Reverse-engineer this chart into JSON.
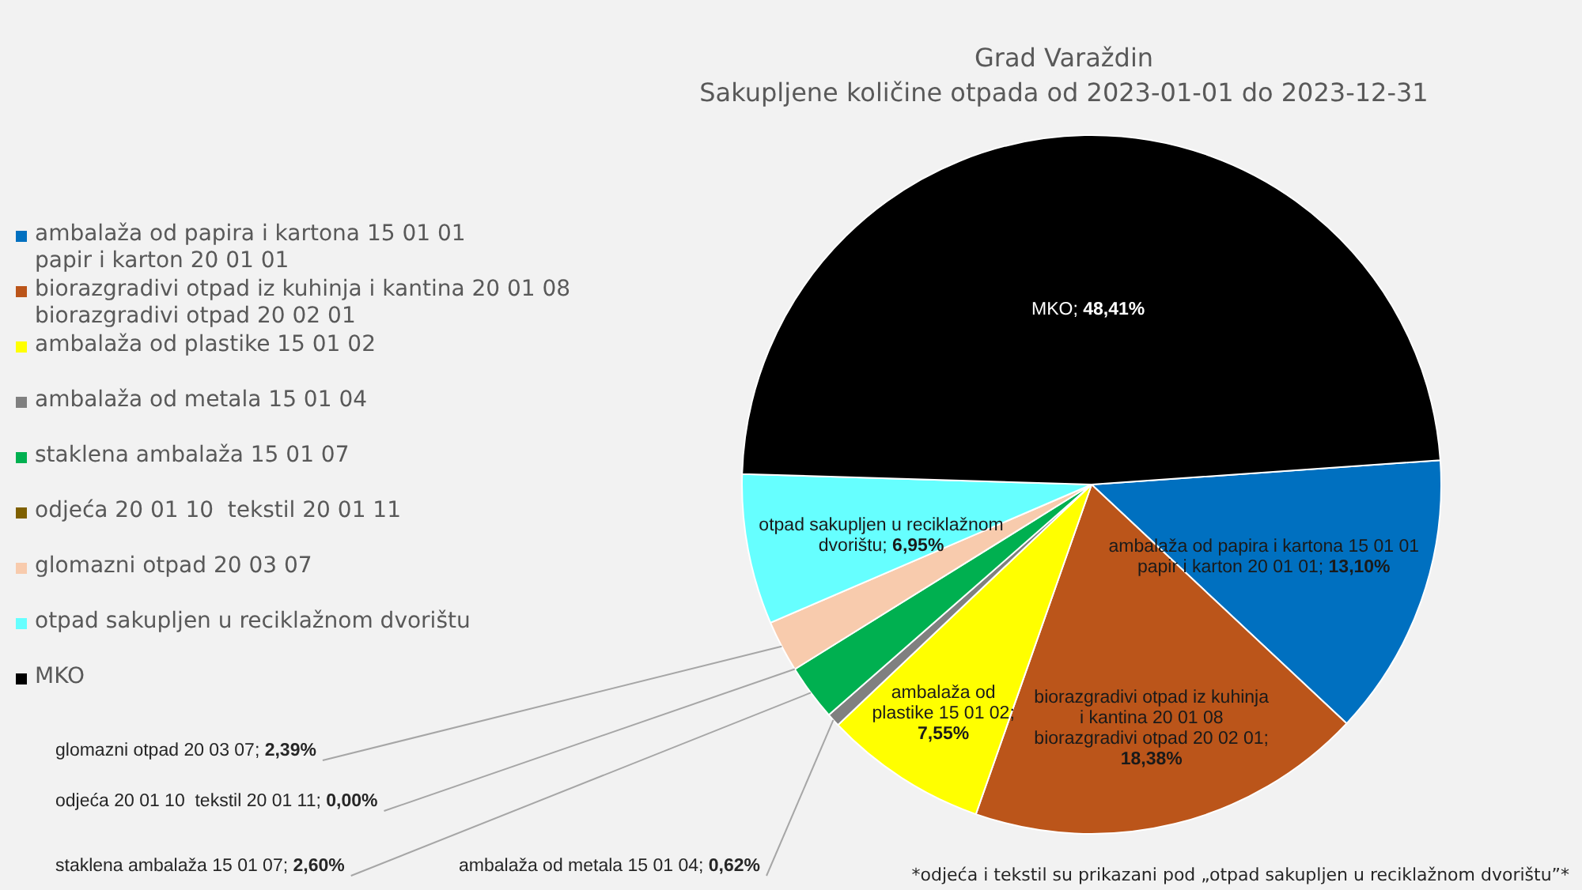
{
  "chart_data": {
    "type": "pie",
    "title": "Grad Varaždin\nSakupljene količine otpada od 2023-01-01 do 2023-12-31",
    "categories": [
      "ambalaža od papira i kartona 15 01 01\npapir i karton 20 01 01",
      "biorazgradivi otpad iz kuhinja i kantina 20 01 08\nbiorazgradivi otpad 20 02 01",
      "ambalaža od plastike 15 01 02",
      "ambalaža od metala 15 01 04",
      "staklena ambalaža 15 01 07",
      "odjeća 20 01 10  tekstil 20 01 11",
      "glomazni otpad 20 03 07",
      "otpad sakupljen u reciklažnom dvorištu",
      "MKO"
    ],
    "values": [
      13.1,
      18.38,
      7.55,
      0.62,
      2.6,
      0.0,
      2.39,
      6.95,
      48.41
    ],
    "colors": [
      "#0070c0",
      "#bb551a",
      "#ffff00",
      "#808080",
      "#00b050",
      "#7f6000",
      "#f8cbad",
      "#66ffff",
      "#000000"
    ],
    "value_labels": [
      "ambalaža od papira i kartona 15 01 01\npapir i karton 20 01 01; 13,10%",
      "biorazgradivi otpad iz kuhinja\ni kantina 20 01 08\nbiorazgradivi otpad 20 02 01;\n18,38%",
      "ambalaža od\nplastike 15 01 02;\n7,55%",
      "ambalaža od metala 15 01 04; 0,62%",
      "staklena ambalaža 15 01 07; 2,60%",
      "odjeća 20 01 10  tekstil 20 01 11; 0,00%",
      "glomazni otpad 20 03 07; 2,39%",
      "otpad sakupljen u reciklažnom\ndvorištu; 6,95%",
      "MKO; 48,41%"
    ],
    "legend": "left",
    "annotations": [
      "*odjeća i tekstil su prikazani pod „otpad sakupljen u reciklažnom dvorištu”*"
    ]
  }
}
